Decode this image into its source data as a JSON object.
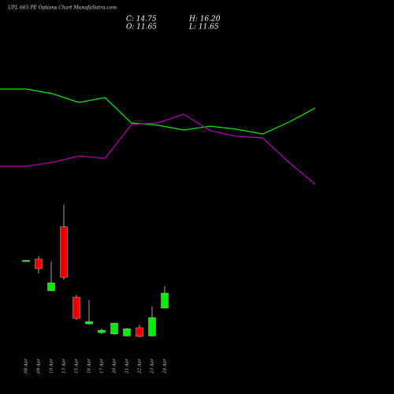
{
  "chart_data": [
    {
      "type": "line",
      "categories": [
        null,
        null,
        null,
        null,
        null,
        null,
        null,
        null,
        null,
        null,
        null,
        null,
        null
      ],
      "ylim": [
        0,
        100
      ],
      "series": [
        {
          "color": "#00ee00",
          "values": [
            90.7,
            90.7,
            86.4,
            78.6,
            82.9,
            60,
            57.9,
            53.6,
            57.1,
            54.3,
            50,
            60.7,
            73.6
          ]
        },
        {
          "color": "#b000b0",
          "values": [
            20.7,
            20.7,
            24.3,
            30,
            27.9,
            58.6,
            60,
            67.9,
            52.9,
            47.9,
            46.4,
            24.3,
            4.3
          ]
        }
      ]
    },
    {
      "type": "candlestick",
      "title": "UPL 665 PE Options Chart MunafaSutra.com",
      "summary": {
        "close": "C: 14.75",
        "high": "H: 16.20",
        "open": "O: 11.65",
        "low": "L: 11.65"
      },
      "categories": [
        "08 Apr",
        "09 Apr",
        "10 Apr",
        "13 Apr",
        "15 Apr",
        "16 Apr",
        "17 Apr",
        "20 Apr",
        "21 Apr",
        "22 Apr",
        "23 Apr",
        "24 Apr"
      ],
      "open": [
        21.4,
        21.76,
        15.24,
        28.45,
        13.93,
        8.39,
        6.6,
        6.3,
        5.9,
        7.6,
        5.9,
        11.65
      ],
      "high": [
        21.6,
        22.4,
        21.27,
        33.0,
        14.4,
        13.3,
        7.4,
        8.6,
        7.6,
        8.2,
        12.0,
        16.2
      ],
      "low": [
        21.3,
        18.8,
        15.2,
        17.5,
        9.2,
        8.3,
        6.3,
        6.1,
        5.8,
        5.6,
        5.8,
        11.65
      ],
      "close": [
        21.5,
        19.8,
        16.87,
        18.0,
        9.53,
        8.88,
        7.1,
        8.55,
        7.4,
        5.8,
        9.7,
        14.75
      ],
      "up_color": "#00ee00",
      "down_color": "#ee0000",
      "ylim": [
        -1.2,
        34.6
      ]
    }
  ]
}
